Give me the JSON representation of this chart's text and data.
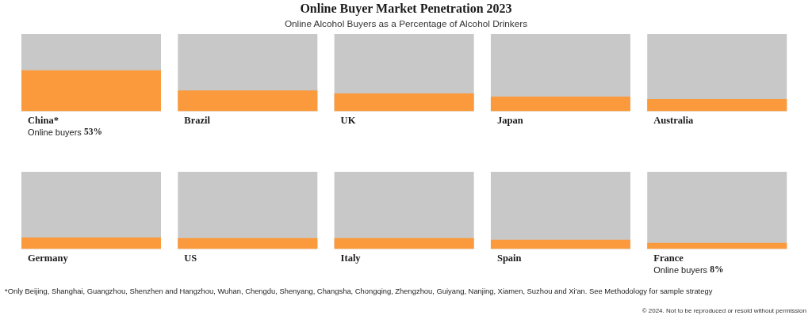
{
  "chart_data": [
    {
      "type": "bar",
      "title": "Online Buyer Market Penetration 2023",
      "subtitle": "Online Alcohol Buyers as a Percentage of Alcohol Drinkers",
      "categories": [
        "China*",
        "Brazil",
        "UK",
        "Japan",
        "Australia"
      ],
      "values": [
        53,
        27,
        23,
        19,
        16
      ],
      "color": "#fb9a3c",
      "ylim": [
        0,
        100
      ],
      "tick_labels": "x",
      "value_labels": [
        "Online buyers 53%",
        null,
        null,
        null,
        null
      ]
    },
    {
      "type": "bar",
      "categories": [
        "Germany",
        "US",
        "Italy",
        "Spain",
        "France"
      ],
      "values": [
        15,
        14,
        14,
        12,
        8
      ],
      "color": "#fb9a3c",
      "ylim": [
        0,
        100
      ],
      "tick_labels": "x",
      "value_labels": [
        null,
        null,
        null,
        null,
        "Online buyers 8%"
      ],
      "annotations": [
        "*Only Beijing, Shanghai, Guangzhou, Shenzhen and Hangzhou, Wuhan, Chengdu, Shenyang, Changsha, Chongqing, Zhengzhou, Guiyang, Nanjing, Xiamen, Suzhou and Xi'an. See Methodology for sample strategy",
        "© 2024. Not to be reproduced or resold without permission"
      ]
    }
  ]
}
